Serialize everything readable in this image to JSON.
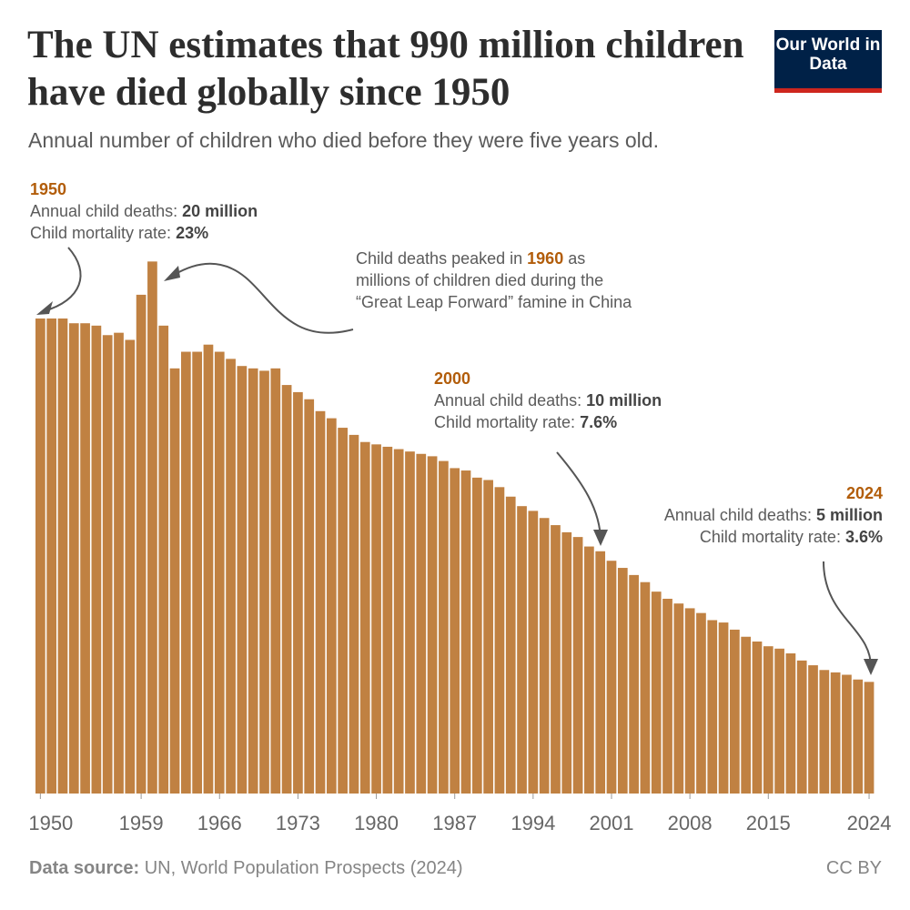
{
  "header": {
    "title": "The UN estimates that 990 million children have died globally since 1950",
    "subtitle": "Annual number of children who died before they were five years old.",
    "logo": "Our World in Data"
  },
  "annotations": {
    "a1950": {
      "year": "1950",
      "deaths_label": "Annual child deaths:",
      "deaths_value": "20 million",
      "rate_label": "Child mortality rate:",
      "rate_value": "23%"
    },
    "peak": {
      "pre": "Child deaths peaked in",
      "year": "1960",
      "post": "as",
      "line2": "millions of children died during the",
      "line3": "“Great Leap Forward” famine in China"
    },
    "a2000": {
      "year": "2000",
      "deaths_label": "Annual child deaths:",
      "deaths_value": "10 million",
      "rate_label": "Child mortality rate:",
      "rate_value": "7.6%"
    },
    "a2024": {
      "year": "2024",
      "deaths_label": "Annual child deaths:",
      "deaths_value": "5 million",
      "rate_label": "Child mortality rate:",
      "rate_value": "3.6%"
    }
  },
  "footer": {
    "source_label": "Data source:",
    "source_text": "UN, World Population Prospects (2024)",
    "license": "CC BY"
  },
  "colors": {
    "bar": "#c08142",
    "accent": "#b25d0a",
    "logo_bg": "#002147",
    "logo_line": "#ce261e"
  },
  "chart_data": {
    "type": "bar",
    "title": "The UN estimates that 990 million children have died globally since 1950",
    "xlabel": "",
    "ylabel": "",
    "unit": "million deaths",
    "ylim": [
      0,
      23
    ],
    "grid": false,
    "x_tick_labels": [
      "1950",
      "1959",
      "1966",
      "1973",
      "1980",
      "1987",
      "1994",
      "2001",
      "2008",
      "2015",
      "2024"
    ],
    "categories": [
      1950,
      1951,
      1952,
      1953,
      1954,
      1955,
      1956,
      1957,
      1958,
      1959,
      1960,
      1961,
      1962,
      1963,
      1964,
      1965,
      1966,
      1967,
      1968,
      1969,
      1970,
      1971,
      1972,
      1973,
      1974,
      1975,
      1976,
      1977,
      1978,
      1979,
      1980,
      1981,
      1982,
      1983,
      1984,
      1985,
      1986,
      1987,
      1988,
      1989,
      1990,
      1991,
      1992,
      1993,
      1994,
      1995,
      1996,
      1997,
      1998,
      1999,
      2000,
      2001,
      2002,
      2003,
      2004,
      2005,
      2006,
      2007,
      2008,
      2009,
      2010,
      2011,
      2012,
      2013,
      2014,
      2015,
      2016,
      2017,
      2018,
      2019,
      2020,
      2021,
      2022,
      2023,
      2024
    ],
    "values": [
      20.0,
      20.0,
      20.0,
      19.8,
      19.8,
      19.7,
      19.3,
      19.4,
      19.1,
      21.0,
      22.4,
      19.7,
      17.9,
      18.6,
      18.6,
      18.9,
      18.6,
      18.3,
      18.0,
      17.9,
      17.8,
      17.9,
      17.2,
      16.9,
      16.6,
      16.1,
      15.8,
      15.4,
      15.1,
      14.8,
      14.7,
      14.6,
      14.5,
      14.4,
      14.3,
      14.2,
      14.0,
      13.7,
      13.6,
      13.3,
      13.2,
      12.9,
      12.5,
      12.1,
      11.9,
      11.6,
      11.3,
      11.0,
      10.8,
      10.4,
      10.2,
      9.8,
      9.5,
      9.2,
      8.9,
      8.5,
      8.2,
      8.0,
      7.8,
      7.6,
      7.3,
      7.2,
      6.9,
      6.6,
      6.4,
      6.2,
      6.1,
      5.9,
      5.6,
      5.4,
      5.2,
      5.1,
      5.0,
      4.8,
      4.7
    ]
  }
}
